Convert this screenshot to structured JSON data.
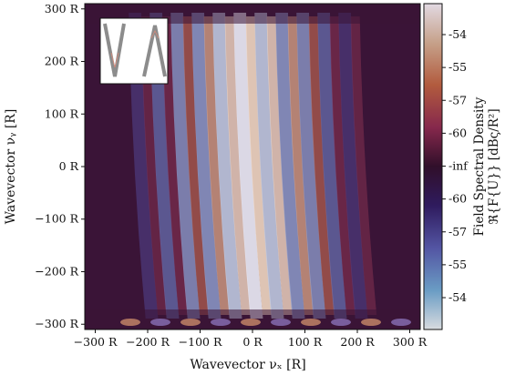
{
  "chart_data": {
    "type": "heatmap",
    "title": "",
    "xlabel": "Wavevector νₓ [R]",
    "ylabel": "Wavevector νᵧ [R]",
    "xlim": [
      -320,
      320
    ],
    "ylim": [
      -310,
      310
    ],
    "x_ticks": [
      -300,
      -200,
      -100,
      0,
      100,
      200,
      300
    ],
    "y_ticks": [
      -300,
      -200,
      -100,
      0,
      100,
      200,
      300
    ],
    "x_tick_labels": [
      "−300 R",
      "−200 R",
      "−100 R",
      "0 R",
      "100 R",
      "200 R",
      "300 R"
    ],
    "y_tick_labels": [
      "−300 R",
      "−200 R",
      "−100 R",
      "0 R",
      "100 R",
      "200 R",
      "300 R"
    ],
    "colormap": "twilight_shifted",
    "colorbar": {
      "label_line1": "Field Spectral Density",
      "label_line2": "ℜ{F{U}} [dBς/R²]",
      "tick_labels": [
        "-54",
        "-55",
        "-57",
        "-60",
        "-inf",
        "-60",
        "-57",
        "-55",
        "-54"
      ],
      "colors": [
        "#e2d9e2",
        "#c6a18a",
        "#b25b3e",
        "#86284c",
        "#300f2a",
        "#2f1b5e",
        "#5355a3",
        "#6a9cc4",
        "#d8dbdf"
      ]
    },
    "fringe_count": 11,
    "fringe_period_R": 40,
    "fringe_tilt": "slight clockwise, curving near top and bottom",
    "inset": "two V-shaped aperture outlines, gray on white"
  }
}
